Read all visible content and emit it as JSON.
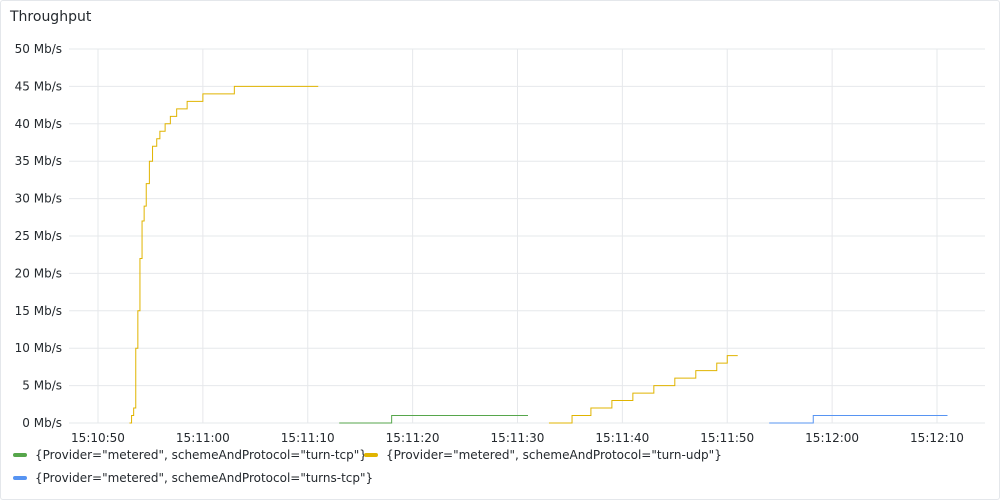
{
  "panel": {
    "title": "Throughput"
  },
  "chart_data": {
    "type": "line",
    "title": "Throughput",
    "xlabel": "",
    "ylabel": "",
    "y_unit": "Mb/s",
    "ylim": [
      0,
      50
    ],
    "y_ticks": [
      "0 Mb/s",
      "5 Mb/s",
      "10 Mb/s",
      "15 Mb/s",
      "20 Mb/s",
      "25 Mb/s",
      "30 Mb/s",
      "35 Mb/s",
      "40 Mb/s",
      "45 Mb/s",
      "50 Mb/s"
    ],
    "x_ticks": [
      "15:10:50",
      "15:11:00",
      "15:11:10",
      "15:11:20",
      "15:11:30",
      "15:11:40",
      "15:11:50",
      "15:12:00",
      "15:12:10"
    ],
    "grid": true,
    "legend_position": "bottom",
    "series": [
      {
        "name": "{Provider=\"metered\", schemeAndProtocol=\"turn-tcp\"}",
        "color": "#56a64b",
        "step": true,
        "points": [
          [
            "15:11:13",
            0
          ],
          [
            "15:11:16",
            0
          ],
          [
            "15:11:18",
            1
          ],
          [
            "15:11:31",
            1
          ]
        ]
      },
      {
        "name": "{Provider=\"metered\", schemeAndProtocol=\"turn-udp\"}",
        "color": "#e0b400",
        "step": true,
        "points": [
          [
            "15:10:53",
            0
          ],
          [
            "15:10:53.2",
            1
          ],
          [
            "15:10:53.4",
            2
          ],
          [
            "15:10:53.6",
            10
          ],
          [
            "15:10:53.8",
            15
          ],
          [
            "15:10:54",
            22
          ],
          [
            "15:10:54.2",
            27
          ],
          [
            "15:10:54.4",
            29
          ],
          [
            "15:10:54.6",
            32
          ],
          [
            "15:10:54.9",
            35
          ],
          [
            "15:10:55.2",
            37
          ],
          [
            "15:10:55.6",
            38
          ],
          [
            "15:10:55.9",
            39
          ],
          [
            "15:10:56.4",
            40
          ],
          [
            "15:10:56.9",
            41
          ],
          [
            "15:10:57.5",
            42
          ],
          [
            "15:10:58.5",
            43
          ],
          [
            "15:11:00",
            44
          ],
          [
            "15:11:03",
            45
          ],
          [
            "15:11:11",
            45
          ]
        ]
      },
      {
        "name": "{Provider=\"metered\", schemeAndProtocol=\"turn-udp\"}",
        "color": "#e0b400",
        "step": true,
        "points": [
          [
            "15:11:33",
            0
          ],
          [
            "15:11:35",
            0
          ],
          [
            "15:11:35.2",
            1
          ],
          [
            "15:11:37",
            2
          ],
          [
            "15:11:39",
            3
          ],
          [
            "15:11:41",
            4
          ],
          [
            "15:11:43",
            5
          ],
          [
            "15:11:45",
            6
          ],
          [
            "15:11:47",
            7
          ],
          [
            "15:11:49",
            8
          ],
          [
            "15:11:50",
            9
          ],
          [
            "15:11:51",
            9
          ]
        ]
      },
      {
        "name": "{Provider=\"metered\", schemeAndProtocol=\"turns-tcp\"}",
        "color": "#5794f2",
        "step": true,
        "points": [
          [
            "15:11:54",
            0
          ],
          [
            "15:11:58",
            0
          ],
          [
            "15:11:58.2",
            1
          ],
          [
            "15:12:11",
            1
          ]
        ]
      }
    ]
  },
  "legend": [
    {
      "label": "{Provider=\"metered\", schemeAndProtocol=\"turn-tcp\"}",
      "color": "#56a64b"
    },
    {
      "label": "{Provider=\"metered\", schemeAndProtocol=\"turn-udp\"}",
      "color": "#e0b400"
    },
    {
      "label": "{Provider=\"metered\", schemeAndProtocol=\"turns-tcp\"}",
      "color": "#5794f2"
    }
  ]
}
